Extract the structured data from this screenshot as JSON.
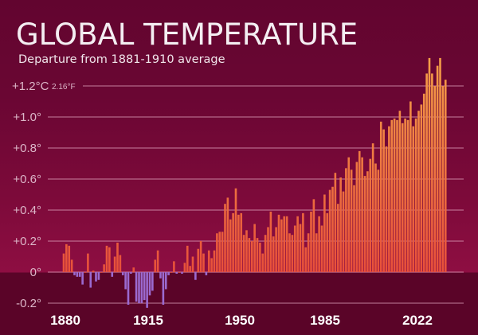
{
  "chart_data": {
    "type": "bar",
    "title": "GLOBAL TEMPERATURE",
    "subtitle": "Departure from 1881-1910 average",
    "xlabel": "",
    "ylabel": "",
    "x_start": 1880,
    "x_end": 2022,
    "ylim": [
      -0.2,
      1.4
    ],
    "grid": true,
    "y_ticks": [
      {
        "value": 1.2,
        "label": "+1.2°C",
        "extra": "2.16°F"
      },
      {
        "value": 1.0,
        "label": "+1.0°"
      },
      {
        "value": 0.8,
        "label": "+0.8°"
      },
      {
        "value": 0.6,
        "label": "+0.6°"
      },
      {
        "value": 0.4,
        "label": "+0.4°"
      },
      {
        "value": 0.2,
        "label": "+0.2°"
      },
      {
        "value": 0.0,
        "label": "0°"
      },
      {
        "value": -0.2,
        "label": "-0.2°"
      }
    ],
    "x_ticks": [
      {
        "value": 1880,
        "label": "1880"
      },
      {
        "value": 1915,
        "label": "1915"
      },
      {
        "value": 1950,
        "label": "1950"
      },
      {
        "value": 1985,
        "label": "1985"
      },
      {
        "value": 2022,
        "label": "2022"
      }
    ],
    "colors": {
      "positive_low": "#e8503a",
      "positive_high": "#f5a048",
      "negative": "#9b6ad0",
      "grid": "#e4a9c2"
    },
    "values": [
      0.12,
      0.18,
      0.17,
      0.08,
      -0.02,
      -0.03,
      -0.03,
      -0.08,
      0.0,
      0.12,
      -0.1,
      0.01,
      -0.06,
      -0.05,
      0.0,
      0.05,
      0.17,
      0.16,
      -0.03,
      0.1,
      0.19,
      0.11,
      -0.02,
      -0.11,
      -0.21,
      -0.01,
      0.03,
      -0.19,
      -0.2,
      -0.2,
      -0.18,
      -0.23,
      -0.15,
      -0.12,
      0.08,
      0.14,
      -0.04,
      -0.21,
      -0.11,
      -0.02,
      0.0,
      0.07,
      -0.01,
      0.0,
      -0.01,
      0.06,
      0.17,
      0.04,
      0.1,
      -0.05,
      0.15,
      0.2,
      0.12,
      -0.02,
      0.14,
      0.09,
      0.14,
      0.25,
      0.26,
      0.26,
      0.44,
      0.48,
      0.34,
      0.38,
      0.54,
      0.37,
      0.38,
      0.24,
      0.27,
      0.22,
      0.2,
      0.31,
      0.22,
      0.19,
      0.12,
      0.24,
      0.29,
      0.39,
      0.23,
      0.29,
      0.37,
      0.34,
      0.36,
      0.36,
      0.25,
      0.24,
      0.3,
      0.36,
      0.31,
      0.38,
      0.16,
      0.25,
      0.39,
      0.47,
      0.25,
      0.36,
      0.3,
      0.5,
      0.38,
      0.53,
      0.55,
      0.64,
      0.44,
      0.61,
      0.52,
      0.67,
      0.74,
      0.66,
      0.56,
      0.71,
      0.78,
      0.74,
      0.62,
      0.65,
      0.73,
      0.83,
      0.7,
      0.66,
      0.97,
      0.92,
      0.81,
      0.94,
      0.98,
      0.99,
      0.98,
      1.04,
      0.96,
      0.99,
      0.98,
      1.1,
      0.94,
      0.99,
      1.04,
      1.08,
      1.15,
      1.28,
      1.38,
      1.28,
      1.2,
      1.33,
      1.38,
      1.2,
      1.24
    ]
  }
}
